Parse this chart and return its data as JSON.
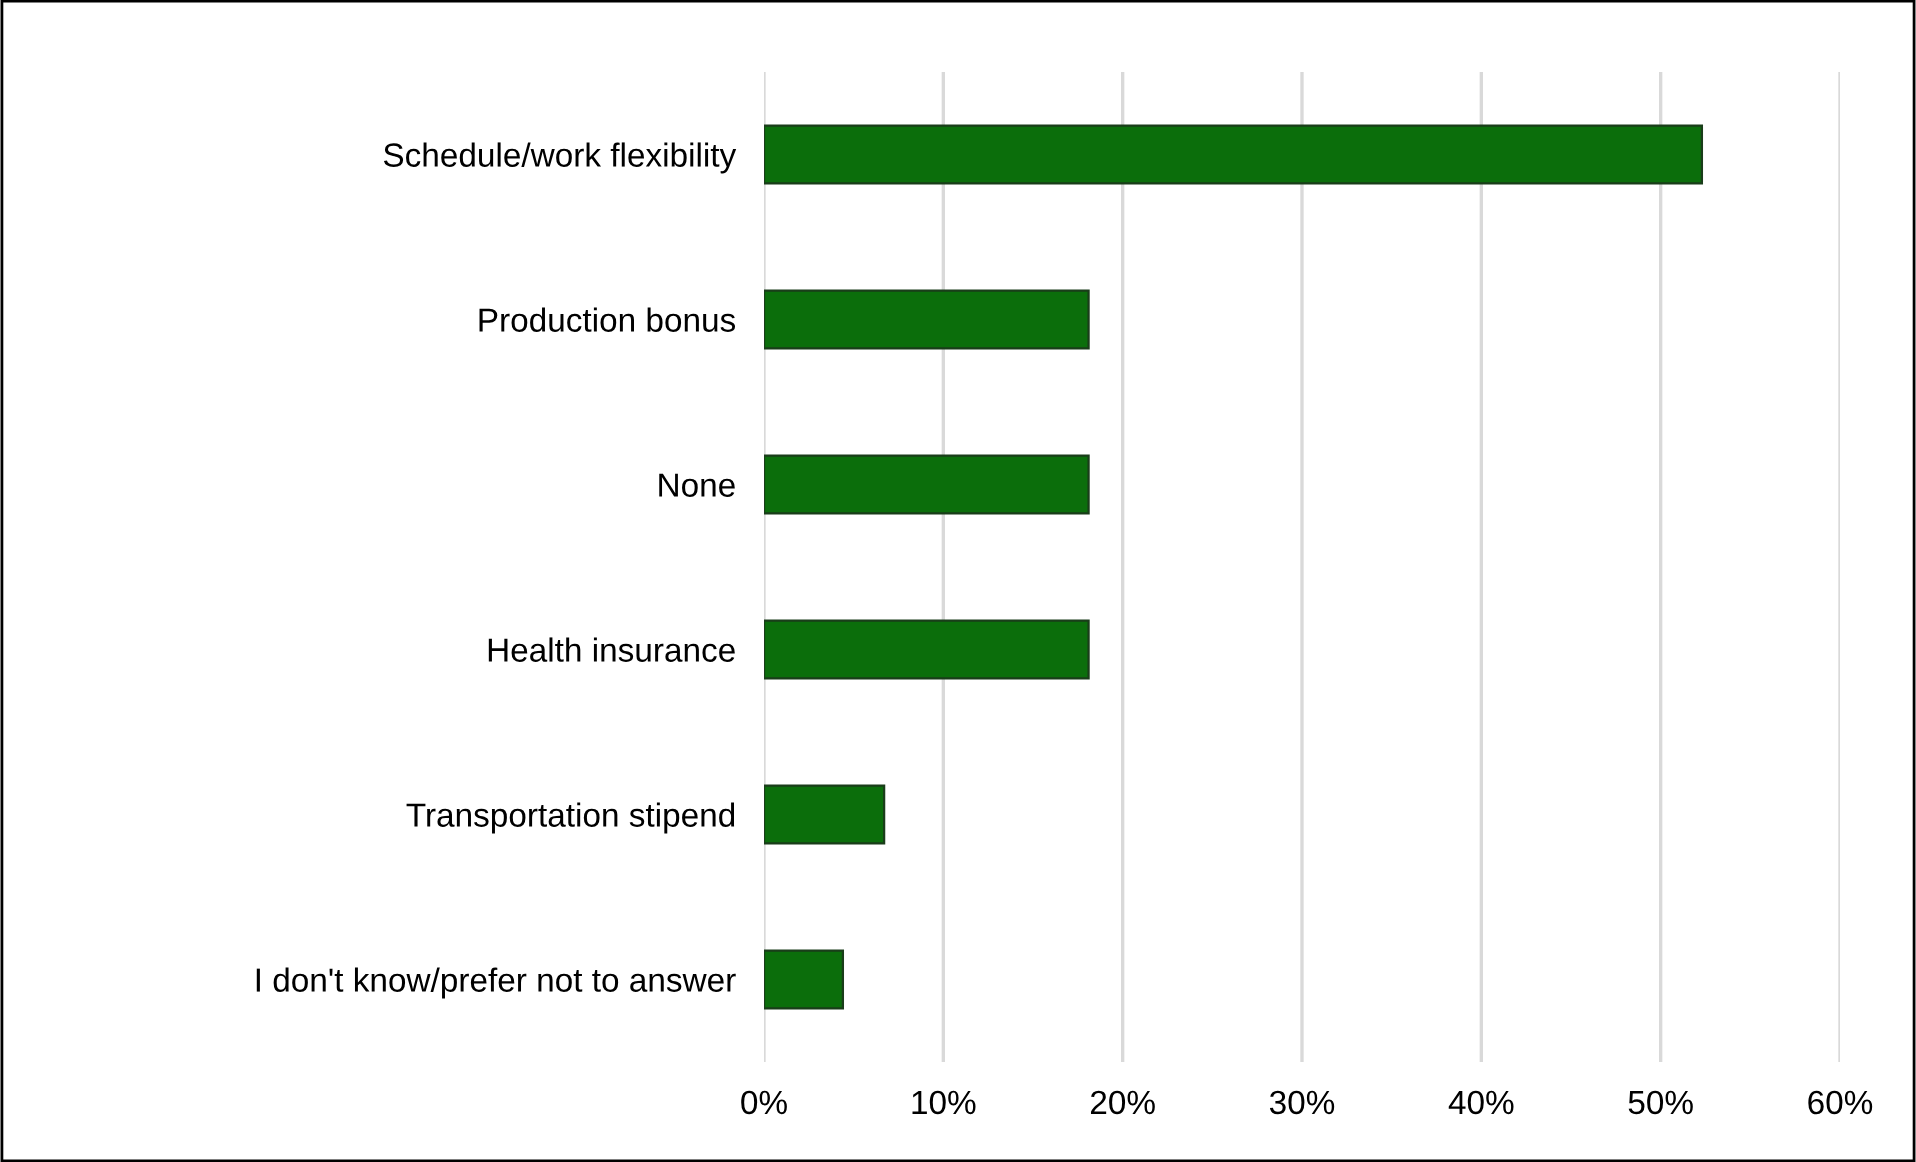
{
  "chart_data": {
    "type": "bar",
    "orientation": "horizontal",
    "categories": [
      "Schedule/work flexibility",
      "Production bonus",
      "None",
      "Health insurance",
      "Transportation stipend",
      "I don't know/prefer not to answer"
    ],
    "values": [
      52.3,
      18.1,
      18.1,
      18.1,
      6.7,
      4.4
    ],
    "color": "#0b6e0b",
    "xlim": [
      0,
      60
    ],
    "xticks": [
      {
        "value": 0,
        "label": "0%"
      },
      {
        "value": 10,
        "label": "10%"
      },
      {
        "value": 20,
        "label": "20%"
      },
      {
        "value": 30,
        "label": "30%"
      },
      {
        "value": 40,
        "label": "40%"
      },
      {
        "value": 50,
        "label": "50%"
      },
      {
        "value": 60,
        "label": "60%"
      }
    ],
    "grid": "x",
    "legend": false
  }
}
